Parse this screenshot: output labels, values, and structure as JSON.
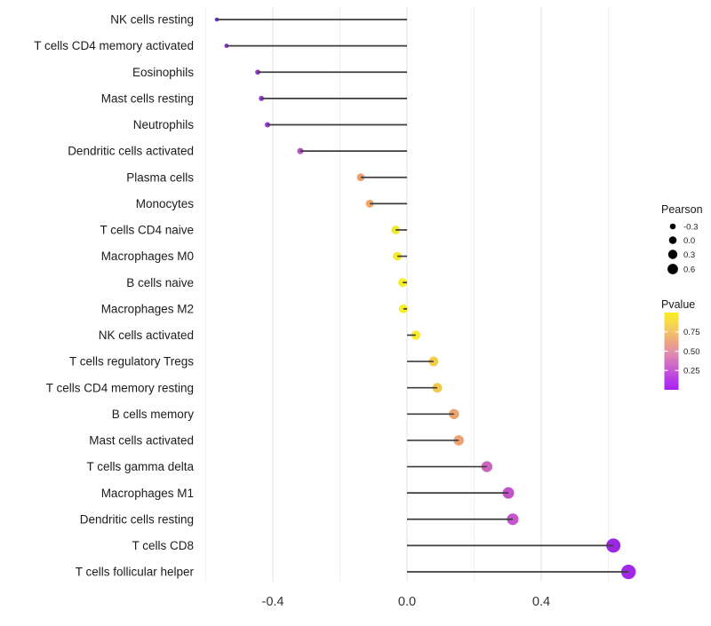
{
  "chart_data": {
    "type": "scatter",
    "variant": "lollipop",
    "title": "",
    "xlabel": "",
    "ylabel": "",
    "grid": "vertical-only",
    "categories": [
      "NK cells resting",
      "T cells CD4 memory activated",
      "Eosinophils",
      "Mast cells resting",
      "Neutrophils",
      "Dendritic cells activated",
      "Plasma cells",
      "Monocytes",
      "T cells CD4 naive",
      "Macrophages M0",
      "B cells naive",
      "Macrophages M2",
      "NK cells activated",
      "T cells regulatory  Tregs",
      "T cells CD4 memory resting",
      "B cells memory",
      "Mast cells activated",
      "T cells gamma delta",
      "Macrophages M1",
      "Dendritic cells resting",
      "T cells CD8",
      "T cells follicular helper"
    ],
    "series": [
      {
        "name": "Pearson",
        "values": [
          -0.567,
          -0.538,
          -0.445,
          -0.434,
          -0.416,
          -0.318,
          -0.138,
          -0.111,
          -0.034,
          -0.029,
          -0.013,
          -0.011,
          0.026,
          0.079,
          0.09,
          0.14,
          0.154,
          0.238,
          0.302,
          0.315,
          0.615,
          0.66
        ]
      }
    ],
    "point_colors": [
      "#7C2FC4",
      "#8833CB",
      "#9539CE",
      "#9539CE",
      "#973ACF",
      "#B950C8",
      "#EC9E70",
      "#F0A768",
      "#F3E735",
      "#F4EA2E",
      "#F6EF27",
      "#F6EF27",
      "#F4EC2C",
      "#EFCC49",
      "#EEC84E",
      "#EDA36C",
      "#EDA271",
      "#CB66BE",
      "#C253C8",
      "#C455CD",
      "#9C27E3",
      "#A228E9"
    ],
    "x_axis": {
      "lim": [
        -0.628,
        0.721
      ],
      "ticks": [
        -0.4,
        0.0,
        0.4
      ],
      "tick_labels": [
        "-0.4",
        "0.0",
        "0.4"
      ],
      "minor_ticks": [
        -0.6,
        -0.2,
        0.2,
        0.6
      ]
    },
    "legend_size": {
      "title": "Pearson",
      "labels": [
        "-0.3",
        "0.0",
        "0.3",
        "0.6"
      ],
      "values": [
        -0.3,
        0.0,
        0.3,
        0.6
      ],
      "dot_color": "#000000"
    },
    "legend_color": {
      "title": "Pvalue",
      "tick_labels": [
        "0.75",
        "0.50",
        "0.25"
      ],
      "tick_values": [
        0.75,
        0.5,
        0.25
      ],
      "range": [
        0,
        1
      ],
      "gradient_stops": [
        {
          "p": 1.0,
          "color": "#F9EE21"
        },
        {
          "p": 0.8,
          "color": "#F4CF5E"
        },
        {
          "p": 0.6,
          "color": "#EBA184"
        },
        {
          "p": 0.45,
          "color": "#DE87B2"
        },
        {
          "p": 0.3,
          "color": "#CC63CD"
        },
        {
          "p": 0.15,
          "color": "#B83FE3"
        },
        {
          "p": 0.0,
          "color": "#A823F2"
        }
      ]
    },
    "style_colors": {
      "background": "#FFFFFF",
      "stem": "#3D3D3D",
      "grid_major": "#E3E3E3",
      "grid_minor": "#F0F0F0",
      "axis_text": "#333333",
      "category_text": "#1C1C1C"
    }
  }
}
